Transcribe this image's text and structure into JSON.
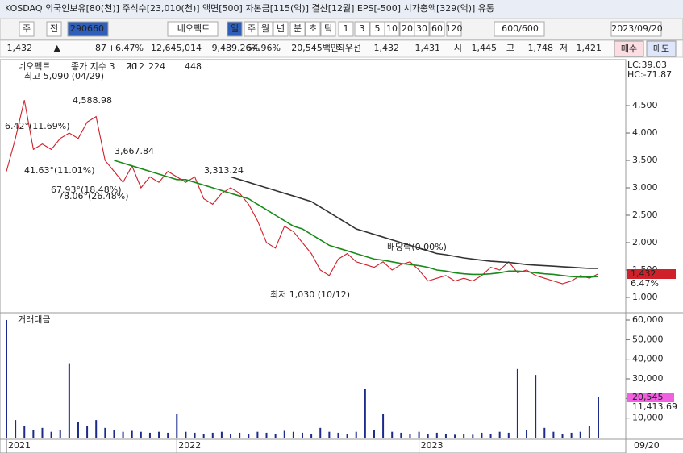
{
  "header": {
    "title": "KOSDAQ 외국인보유[80(천)] 주식수[23,010(천)] 액면[500] 자본금[115(억)] 결산[12월] EPS[-500] 시가총액[329(억)] 유통"
  },
  "toolbar": {
    "items": [
      "주",
      "전",
      "290660",
      "네오펙트",
      "일",
      "주",
      "월",
      "년",
      "분",
      "초",
      "틱",
      "1",
      "3",
      "5",
      "10",
      "20",
      "30",
      "60",
      "120",
      "600/600",
      "2023/09/20"
    ]
  },
  "quote": {
    "items": [
      "1,432",
      "▲",
      "87",
      "+6.47%",
      "12,645,014",
      "9,489.26%",
      "54.96%",
      "20,545백만",
      "최우선",
      "1,432",
      "1,431",
      "시",
      "1,445",
      "고",
      "1,748",
      "저",
      "1,421"
    ],
    "buttons": [
      "매수",
      "매도"
    ]
  },
  "chart_data": [
    {
      "type": "line",
      "name": "네오펙트",
      "legend_extra": [
        {
          "text": "20",
          "color": "#c0399a"
        },
        {
          "text": "448",
          "color": "#2a2ac0"
        }
      ],
      "series": [
        {
          "name": "종가 지수 3",
          "color": "#d0202a",
          "values": [
            3300,
            3900,
            4600,
            3700,
            3800,
            3700,
            3900,
            4000,
            3900,
            4200,
            4300,
            3500,
            3300,
            3100,
            3400,
            3000,
            3200,
            3100,
            3300,
            3200,
            3100,
            3200,
            2800,
            2700,
            2900,
            3000,
            2900,
            2700,
            2400,
            2000,
            1900,
            2300,
            2200,
            2000,
            1800,
            1500,
            1400,
            1700,
            1800,
            1650,
            1600,
            1550,
            1650,
            1500,
            1600,
            1650,
            1500,
            1300,
            1350,
            1400,
            1300,
            1350,
            1300,
            1400,
            1550,
            1500,
            1650,
            1450,
            1500,
            1400,
            1350,
            1300,
            1250,
            1300,
            1400,
            1350,
            1432
          ]
        },
        {
          "name": "112",
          "color": "#1a8a1a",
          "values": [
            null,
            null,
            null,
            null,
            null,
            null,
            null,
            null,
            null,
            null,
            null,
            null,
            3500,
            3450,
            3400,
            3350,
            3300,
            3250,
            3200,
            3150,
            3150,
            3100,
            3050,
            3000,
            2950,
            2900,
            2850,
            2800,
            2700,
            2600,
            2500,
            2400,
            2300,
            2250,
            2150,
            2050,
            1950,
            1900,
            1850,
            1800,
            1750,
            1700,
            1680,
            1650,
            1620,
            1600,
            1580,
            1550,
            1500,
            1480,
            1450,
            1430,
            1420,
            1420,
            1430,
            1450,
            1480,
            1480,
            1470,
            1450,
            1430,
            1420,
            1400,
            1380,
            1370,
            1370,
            1380
          ]
        },
        {
          "name": "224",
          "color": "#333333",
          "values": [
            null,
            null,
            null,
            null,
            null,
            null,
            null,
            null,
            null,
            null,
            null,
            null,
            null,
            null,
            null,
            null,
            null,
            null,
            null,
            null,
            null,
            null,
            null,
            null,
            null,
            3200,
            3150,
            3100,
            3050,
            3000,
            2950,
            2900,
            2850,
            2800,
            2750,
            2650,
            2550,
            2450,
            2350,
            2250,
            2200,
            2150,
            2100,
            2050,
            2000,
            1950,
            1900,
            1850,
            1800,
            1780,
            1750,
            1720,
            1700,
            1680,
            1660,
            1650,
            1640,
            1620,
            1600,
            1590,
            1580,
            1570,
            1560,
            1550,
            1540,
            1530,
            1530
          ]
        }
      ],
      "ylim": [
        735,
        5280
      ],
      "yticks": [
        {
          "value": 1000,
          "label": "1,000"
        },
        {
          "value": 1500,
          "label": "1,500"
        },
        {
          "value": 2000,
          "label": "2,000"
        },
        {
          "value": 2500,
          "label": "2,500"
        },
        {
          "value": 3000,
          "label": "3,000"
        },
        {
          "value": 3500,
          "label": "3,500"
        },
        {
          "value": 4000,
          "label": "4,000"
        },
        {
          "value": 4500,
          "label": "4,500"
        }
      ],
      "annotations": [
        "최고 5,090 (04/29)",
        "4,588.98",
        "6.42°(11.69%)",
        "41.63°(11.01%)",
        "67.93°(18.48%)",
        "78.06°(26.48%)",
        "3,667.84",
        "3,313.24",
        "최저 1,030 (10/12)",
        "배당락(0.00%)"
      ],
      "right_labels": [
        "LC:39.03",
        "HC:-71.87"
      ],
      "last_value_labels": [
        "1,432",
        "6.47%"
      ]
    },
    {
      "type": "bar",
      "name": "거래대금",
      "color": "#1c2a8c",
      "values": [
        60000,
        9000,
        6000,
        4000,
        5000,
        3000,
        4000,
        38000,
        8000,
        6000,
        9000,
        5000,
        4000,
        3000,
        3500,
        3000,
        2500,
        3000,
        2500,
        12000,
        3000,
        2500,
        2000,
        2500,
        3000,
        2000,
        2500,
        2000,
        3000,
        2500,
        2000,
        3500,
        3000,
        2500,
        2000,
        5000,
        3000,
        2500,
        2000,
        3000,
        25000,
        4000,
        12000,
        3000,
        2500,
        2000,
        3000,
        2000,
        2500,
        2000,
        1500,
        2000,
        1500,
        2500,
        2000,
        3000,
        2500,
        35000,
        4000,
        32000,
        5000,
        3000,
        2000,
        2500,
        3000,
        6000,
        20545
      ],
      "ylim": [
        0,
        63700
      ],
      "yticks": [
        {
          "value": 10000,
          "label": "10,000"
        },
        {
          "value": 20000,
          "label": "20,000"
        },
        {
          "value": 30000,
          "label": "30,000"
        },
        {
          "value": 40000,
          "label": "40,000"
        },
        {
          "value": 50000,
          "label": "50,000"
        },
        {
          "value": 60000,
          "label": "60,000"
        }
      ],
      "last_value_labels": [
        "20,545",
        "11,413.69"
      ],
      "xticks": [
        {
          "value": 0,
          "label": "2021"
        },
        {
          "value": 19,
          "label": "2022"
        },
        {
          "value": 46,
          "label": "2023"
        }
      ],
      "last_date": "09/20"
    }
  ]
}
